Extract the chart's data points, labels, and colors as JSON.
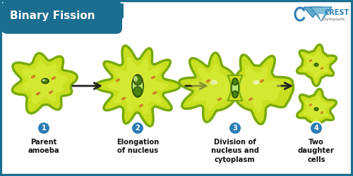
{
  "title": "Binary Fission",
  "title_bg_color": "#1b6e8f",
  "title_text_color": "#ffffff",
  "border_color": "#1b6e8f",
  "bg_color": "#ffffff",
  "steps": [
    {
      "number": "1",
      "label": "Parent\namoeba"
    },
    {
      "number": "2",
      "label": "Elongation\nof nucleus"
    },
    {
      "number": "3",
      "label": "Division of\nnucleus and\ncytoplasm"
    },
    {
      "number": "4",
      "label": "Two\ndaughter\ncells"
    }
  ],
  "step_number_color": "#2a7db5",
  "step_label_color": "#111111",
  "arrow_color": "#222222",
  "cell_fill": "#c8e020",
  "cell_inner": "#ddf040",
  "cell_border": "#7aaa08",
  "nucleus_fill": "#4a8010",
  "nucleus_border": "#2a5008",
  "organelle_color": "#c88820",
  "white_spot": "#f0f8d0",
  "crest_color": "#2a7db5",
  "figsize": [
    5.0,
    2.5
  ],
  "dpi": 100
}
